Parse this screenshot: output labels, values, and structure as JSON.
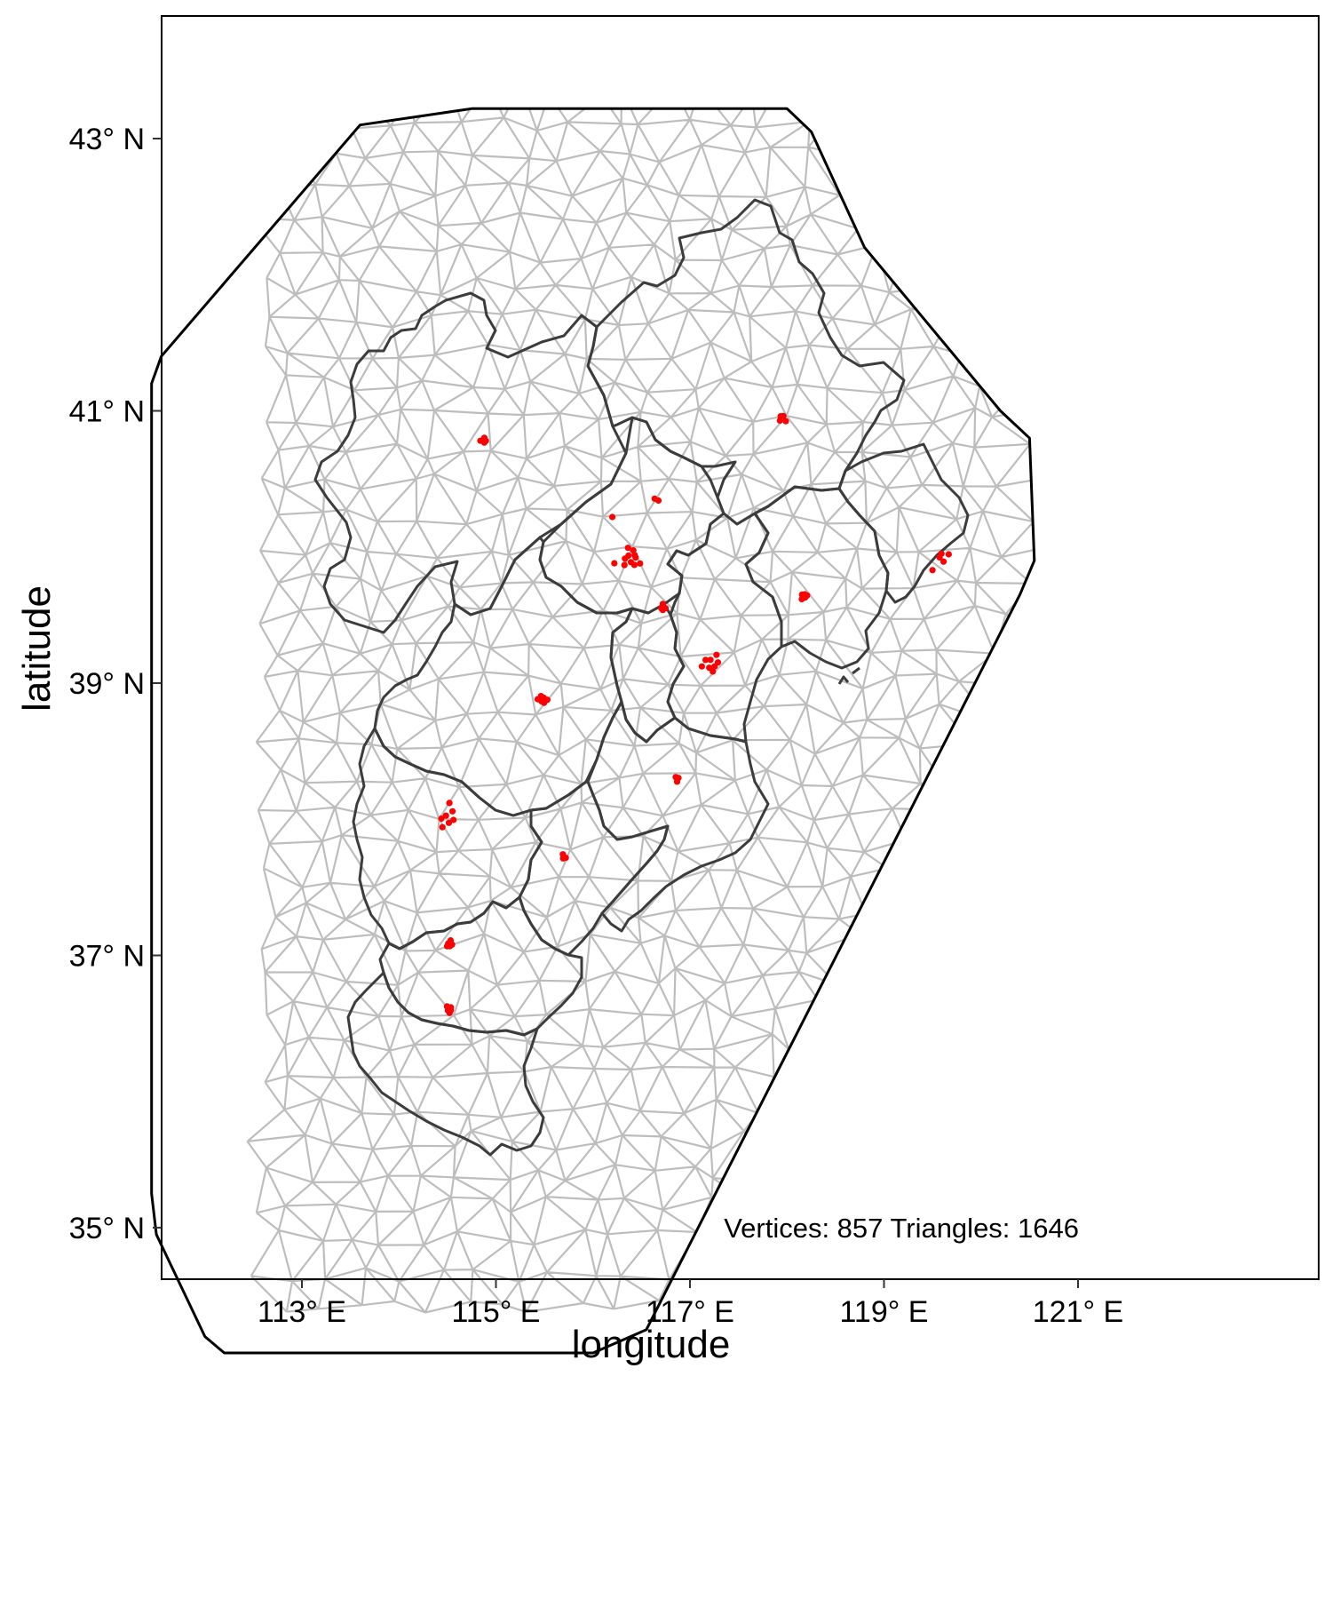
{
  "chart_data": {
    "type": "mesh_map",
    "xlabel": "longitude",
    "ylabel": "latitude",
    "xlim": [
      111.55,
      121.8
    ],
    "ylim": [
      34.6,
      44.0
    ],
    "x_ticks": [
      {
        "value": 113,
        "label": "113° E"
      },
      {
        "value": 115,
        "label": "115° E"
      },
      {
        "value": 117,
        "label": "117° E"
      },
      {
        "value": 119,
        "label": "119° E"
      },
      {
        "value": 121,
        "label": "121° E"
      }
    ],
    "y_ticks": [
      {
        "value": 35,
        "label": "35° N"
      },
      {
        "value": 37,
        "label": "37° N"
      },
      {
        "value": 39,
        "label": "39° N"
      },
      {
        "value": 41,
        "label": "41° N"
      },
      {
        "value": 43,
        "label": "43° N"
      }
    ],
    "annotation": "Vertices:  857   Triangles:  1646",
    "mesh": {
      "vertices": 857,
      "triangles": 1646
    },
    "mesh_boundary": [
      [
        114.75,
        43.22
      ],
      [
        118.0,
        43.22
      ],
      [
        118.25,
        43.05
      ],
      [
        118.8,
        42.2
      ],
      [
        120.2,
        41.0
      ],
      [
        120.5,
        40.8
      ],
      [
        120.55,
        39.9
      ],
      [
        120.4,
        39.65
      ],
      [
        116.55,
        34.25
      ],
      [
        116.0,
        34.08
      ],
      [
        112.2,
        34.08
      ],
      [
        112.0,
        34.2
      ],
      [
        111.5,
        34.95
      ],
      [
        111.45,
        35.25
      ],
      [
        111.45,
        41.2
      ],
      [
        111.55,
        41.4
      ],
      [
        113.6,
        43.1
      ]
    ],
    "grid": false,
    "colors": {
      "mesh": "#bdbdbd",
      "mesh_boundary": "#000000",
      "regions": "#3c3c3c",
      "stations": "#ff0000",
      "panel_border": "#000000"
    },
    "station_clusters": [
      {
        "lon": 114.88,
        "lat": 40.78,
        "n": 4,
        "spread": 0.04
      },
      {
        "lon": 115.48,
        "lat": 38.88,
        "n": 6,
        "spread": 0.05
      },
      {
        "lon": 114.5,
        "lat": 38.0,
        "n": 6,
        "spread": 0.09
      },
      {
        "lon": 114.52,
        "lat": 38.12,
        "n": 1,
        "spread": 0.0
      },
      {
        "lon": 115.7,
        "lat": 37.72,
        "n": 3,
        "spread": 0.03
      },
      {
        "lon": 114.52,
        "lat": 37.08,
        "n": 5,
        "spread": 0.04
      },
      {
        "lon": 114.52,
        "lat": 36.6,
        "n": 5,
        "spread": 0.04
      },
      {
        "lon": 116.4,
        "lat": 39.92,
        "n": 10,
        "spread": 0.1
      },
      {
        "lon": 116.2,
        "lat": 40.22,
        "n": 1,
        "spread": 0.0
      },
      {
        "lon": 116.65,
        "lat": 40.35,
        "n": 2,
        "spread": 0.04
      },
      {
        "lon": 116.22,
        "lat": 39.88,
        "n": 1,
        "spread": 0.0
      },
      {
        "lon": 116.72,
        "lat": 39.55,
        "n": 4,
        "spread": 0.04
      },
      {
        "lon": 117.22,
        "lat": 39.14,
        "n": 8,
        "spread": 0.1
      },
      {
        "lon": 116.87,
        "lat": 38.3,
        "n": 3,
        "spread": 0.03
      },
      {
        "lon": 118.18,
        "lat": 39.64,
        "n": 5,
        "spread": 0.04
      },
      {
        "lon": 117.95,
        "lat": 40.95,
        "n": 4,
        "spread": 0.05
      },
      {
        "lon": 119.6,
        "lat": 39.93,
        "n": 4,
        "spread": 0.07
      },
      {
        "lon": 119.5,
        "lat": 39.83,
        "n": 1,
        "spread": 0.0
      }
    ]
  }
}
